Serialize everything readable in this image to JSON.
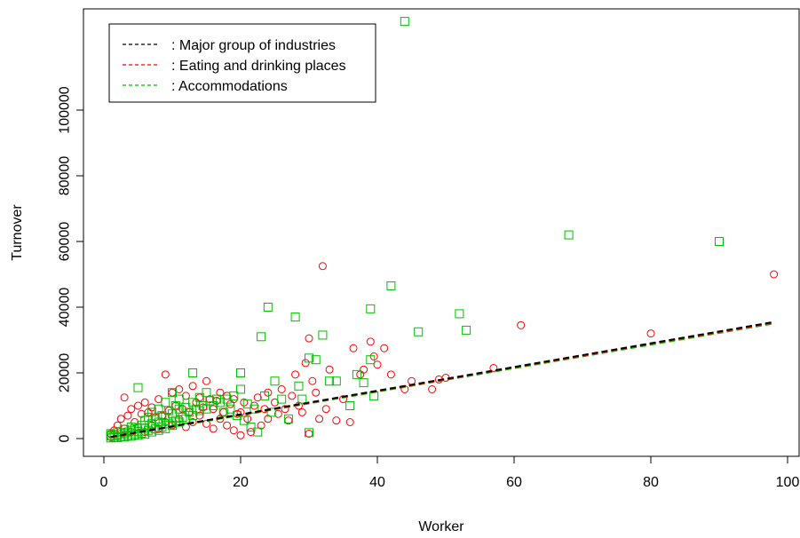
{
  "chart_data": {
    "type": "scatter",
    "xlabel": "Worker",
    "ylabel": "Turnover",
    "xlim": [
      0,
      100
    ],
    "ylim": [
      -5000,
      127000
    ],
    "x_ticks": [
      0,
      20,
      40,
      60,
      80,
      100
    ],
    "y_ticks": [
      0,
      20000,
      40000,
      60000,
      80000,
      100000
    ],
    "grid": false,
    "legend_position": "top-left",
    "legend": [
      {
        "label": ": Major group of industries",
        "color": "#000000",
        "style": "dashed"
      },
      {
        "label": ": Eating and drinking places",
        "color": "#ff0000",
        "style": "dashed"
      },
      {
        "label": ": Accommodations",
        "color": "#00c000",
        "style": "dashed"
      }
    ],
    "series": [
      {
        "name": "Eating and drinking places",
        "marker": "circle",
        "color": "#ff0000",
        "points": [
          [
            1,
            500
          ],
          [
            1,
            1500
          ],
          [
            1.5,
            2500
          ],
          [
            2,
            4000
          ],
          [
            2,
            800
          ],
          [
            2.5,
            6000
          ],
          [
            3,
            12500
          ],
          [
            3,
            3000
          ],
          [
            3.5,
            7000
          ],
          [
            4,
            9000
          ],
          [
            4,
            2000
          ],
          [
            4.5,
            5000
          ],
          [
            5,
            10000
          ],
          [
            5,
            3500
          ],
          [
            5.5,
            7500
          ],
          [
            6,
            11000
          ],
          [
            6,
            2000
          ],
          [
            6.5,
            8000
          ],
          [
            7,
            9500
          ],
          [
            7,
            4000
          ],
          [
            7.5,
            6500
          ],
          [
            8,
            12000
          ],
          [
            8,
            3000
          ],
          [
            8.5,
            7000
          ],
          [
            9,
            19500
          ],
          [
            9,
            5000
          ],
          [
            9.5,
            8500
          ],
          [
            10,
            14000
          ],
          [
            10,
            4000
          ],
          [
            10.5,
            10000
          ],
          [
            11,
            15000
          ],
          [
            11,
            6000
          ],
          [
            11.5,
            9000
          ],
          [
            12,
            13000
          ],
          [
            12,
            3500
          ],
          [
            12.5,
            8000
          ],
          [
            13,
            16000
          ],
          [
            13,
            5000
          ],
          [
            13.5,
            11000
          ],
          [
            14,
            12500
          ],
          [
            14,
            7000
          ],
          [
            14.5,
            9500
          ],
          [
            15,
            17500
          ],
          [
            15,
            4500
          ],
          [
            15.5,
            12000
          ],
          [
            16,
            9000
          ],
          [
            16,
            3000
          ],
          [
            16.5,
            11500
          ],
          [
            17,
            14000
          ],
          [
            17,
            6000
          ],
          [
            17.5,
            8000
          ],
          [
            18,
            13000
          ],
          [
            18,
            4000
          ],
          [
            18.5,
            10500
          ],
          [
            19,
            12000
          ],
          [
            19,
            2500
          ],
          [
            19.5,
            7500
          ],
          [
            20,
            8000
          ],
          [
            20,
            1000
          ],
          [
            20.5,
            11000
          ],
          [
            21,
            6000
          ],
          [
            21.5,
            2000
          ],
          [
            22,
            10000
          ],
          [
            22.5,
            12500
          ],
          [
            23,
            4000
          ],
          [
            23.5,
            9000
          ],
          [
            24,
            14000
          ],
          [
            24,
            6000
          ],
          [
            25,
            11000
          ],
          [
            25.5,
            7500
          ],
          [
            26,
            15000
          ],
          [
            26.5,
            9000
          ],
          [
            27,
            5500
          ],
          [
            27.5,
            13000
          ],
          [
            28,
            19500
          ],
          [
            28.5,
            10000
          ],
          [
            29,
            8000
          ],
          [
            29.5,
            23000
          ],
          [
            30,
            30500
          ],
          [
            30,
            1500
          ],
          [
            30.5,
            17500
          ],
          [
            31,
            14000
          ],
          [
            31.5,
            6000
          ],
          [
            32,
            52500
          ],
          [
            32.5,
            9000
          ],
          [
            33,
            21000
          ],
          [
            34,
            5500
          ],
          [
            35,
            12000
          ],
          [
            36,
            5000
          ],
          [
            36.5,
            27500
          ],
          [
            37.5,
            19500
          ],
          [
            38,
            21000
          ],
          [
            39,
            29500
          ],
          [
            39.5,
            25000
          ],
          [
            40,
            22500
          ],
          [
            41,
            27500
          ],
          [
            42,
            19500
          ],
          [
            44,
            15000
          ],
          [
            45,
            17500
          ],
          [
            48,
            15000
          ],
          [
            49,
            18000
          ],
          [
            50,
            18500
          ],
          [
            57,
            21500
          ],
          [
            61,
            34500
          ],
          [
            80,
            32000
          ],
          [
            98,
            50000
          ]
        ]
      },
      {
        "name": "Accommodations",
        "marker": "square",
        "color": "#00c000",
        "points": [
          [
            1,
            200
          ],
          [
            1,
            800
          ],
          [
            1,
            1500
          ],
          [
            1.5,
            400
          ],
          [
            1.5,
            1000
          ],
          [
            2,
            300
          ],
          [
            2,
            1200
          ],
          [
            2,
            2200
          ],
          [
            2.5,
            600
          ],
          [
            2.5,
            1800
          ],
          [
            3,
            500
          ],
          [
            3,
            1500
          ],
          [
            3,
            2800
          ],
          [
            3.5,
            900
          ],
          [
            3.5,
            2000
          ],
          [
            4,
            700
          ],
          [
            4,
            2500
          ],
          [
            4,
            3500
          ],
          [
            4.5,
            1200
          ],
          [
            4.5,
            3000
          ],
          [
            5,
            1000
          ],
          [
            5,
            2200
          ],
          [
            5,
            15500
          ],
          [
            5.5,
            1600
          ],
          [
            5.5,
            4000
          ],
          [
            6,
            1300
          ],
          [
            6,
            3200
          ],
          [
            6,
            5500
          ],
          [
            6.5,
            2500
          ],
          [
            6.5,
            6500
          ],
          [
            7,
            2000
          ],
          [
            7,
            4500
          ],
          [
            7,
            8000
          ],
          [
            7.5,
            3000
          ],
          [
            7.5,
            6000
          ],
          [
            8,
            2500
          ],
          [
            8,
            5000
          ],
          [
            8,
            9000
          ],
          [
            8.5,
            3500
          ],
          [
            8.5,
            7000
          ],
          [
            9,
            3000
          ],
          [
            9,
            6500
          ],
          [
            9,
            11000
          ],
          [
            9.5,
            4500
          ],
          [
            9.5,
            8500
          ],
          [
            10,
            4000
          ],
          [
            10,
            7500
          ],
          [
            10,
            14000
          ],
          [
            10.5,
            5500
          ],
          [
            10.5,
            10000
          ],
          [
            11,
            5000
          ],
          [
            11,
            9000
          ],
          [
            11,
            12000
          ],
          [
            11.5,
            6500
          ],
          [
            12,
            6000
          ],
          [
            12,
            9500
          ],
          [
            12.5,
            8000
          ],
          [
            13,
            7000
          ],
          [
            13,
            11000
          ],
          [
            13,
            20000
          ],
          [
            13.5,
            9000
          ],
          [
            14,
            8500
          ],
          [
            14,
            12500
          ],
          [
            14.5,
            10000
          ],
          [
            15,
            9000
          ],
          [
            15,
            14000
          ],
          [
            15.5,
            11500
          ],
          [
            16,
            10000
          ],
          [
            16.5,
            12000
          ],
          [
            17,
            11000
          ],
          [
            17.5,
            8000
          ],
          [
            18,
            12000
          ],
          [
            18.5,
            9000
          ],
          [
            19,
            13000
          ],
          [
            19.5,
            7000
          ],
          [
            20,
            20000
          ],
          [
            20,
            15000
          ],
          [
            20.5,
            5500
          ],
          [
            21,
            10500
          ],
          [
            21.5,
            3500
          ],
          [
            22,
            9000
          ],
          [
            22.5,
            2000
          ],
          [
            23,
            31000
          ],
          [
            23.5,
            13000
          ],
          [
            24,
            40000
          ],
          [
            24.5,
            8000
          ],
          [
            25,
            17500
          ],
          [
            26,
            12000
          ],
          [
            27,
            6000
          ],
          [
            28,
            37000
          ],
          [
            28.5,
            16000
          ],
          [
            29,
            12000
          ],
          [
            30,
            24500
          ],
          [
            30,
            1800
          ],
          [
            31,
            24000
          ],
          [
            32,
            31500
          ],
          [
            33,
            17500
          ],
          [
            34,
            17500
          ],
          [
            36,
            10000
          ],
          [
            37,
            19500
          ],
          [
            38,
            17000
          ],
          [
            39,
            24000
          ],
          [
            39,
            39500
          ],
          [
            39.5,
            13000
          ],
          [
            42,
            46500
          ],
          [
            44,
            127000
          ],
          [
            46,
            32500
          ],
          [
            52,
            38000
          ],
          [
            53,
            33000
          ],
          [
            68,
            62000
          ],
          [
            90,
            60000
          ]
        ]
      }
    ],
    "fit_lines": [
      {
        "name": "Major group of industries",
        "color": "#000000",
        "x": [
          1,
          98
        ],
        "y": [
          500,
          35500
        ]
      },
      {
        "name": "Eating and drinking places",
        "color": "#ff0000",
        "x": [
          1,
          98
        ],
        "y": [
          400,
          35300
        ]
      },
      {
        "name": "Accommodations",
        "color": "#00c000",
        "x": [
          1,
          98
        ],
        "y": [
          300,
          35000
        ]
      }
    ]
  }
}
